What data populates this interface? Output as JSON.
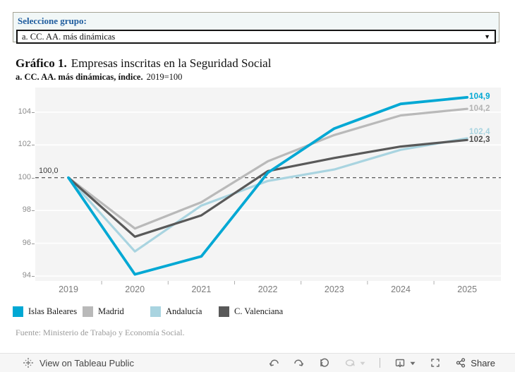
{
  "filter": {
    "label": "Seleccione grupo:",
    "selected_option": "a. CC. AA. más dinámicas"
  },
  "title": {
    "prefix": "Gráfico 1.",
    "text": "Empresas inscritas en la Seguridad Social"
  },
  "subtitle": {
    "bold": "a. CC. AA. más dinámicas, índice.",
    "normal": "2019=100"
  },
  "chart_data": {
    "type": "line",
    "x": [
      2019,
      2020,
      2021,
      2022,
      2023,
      2024,
      2025
    ],
    "series": [
      {
        "name": "Islas Baleares",
        "color": "#00a8d4",
        "line_width": 3.8,
        "values": [
          100.0,
          94.1,
          95.2,
          100.3,
          103.0,
          104.5,
          104.9
        ],
        "end_label": "104,9",
        "end_label_color": "#00a8d4"
      },
      {
        "name": "Madrid",
        "color": "#b9b9b9",
        "line_width": 3.2,
        "values": [
          100.0,
          96.9,
          98.5,
          101.0,
          102.6,
          103.8,
          104.2
        ],
        "end_label": "104,2",
        "end_label_color": "#b3b3b3"
      },
      {
        "name": "Andalucía",
        "color": "#a9d4e0",
        "line_width": 3.2,
        "values": [
          100.0,
          95.5,
          98.3,
          99.8,
          100.5,
          101.7,
          102.4
        ],
        "end_label": "102,4",
        "end_label_color": "#a9d4e0"
      },
      {
        "name": "C. Valenciana",
        "color": "#595959",
        "line_width": 3.2,
        "values": [
          100.0,
          96.4,
          97.7,
          100.4,
          101.2,
          101.9,
          102.3
        ],
        "end_label": "102,3",
        "end_label_color": "#4d4d4d"
      }
    ],
    "draw_order": [
      1,
      2,
      3,
      0
    ],
    "yticks": [
      94,
      96,
      98,
      100,
      102,
      104
    ],
    "ylim": [
      93.7,
      105.5
    ],
    "reference_line": {
      "value": 100,
      "label": "100,0",
      "style": "dashed"
    },
    "grid": "white-on-gray",
    "legend_position": "bottom",
    "xlabel": "",
    "ylabel": ""
  },
  "footer": {
    "source": "Fuente: Ministerio de Trabajo y Economía Social."
  },
  "toolbar": {
    "view_label": "View on Tableau Public",
    "share_label": "Share",
    "icons": [
      "tableau-logo",
      "undo",
      "redo",
      "reset",
      "refresh",
      "download",
      "fullscreen",
      "share"
    ]
  },
  "colors": {
    "plot_background": "#f4f4f4",
    "gridline": "#ffffff",
    "filter_label": "#1e5c9e",
    "axis_text": "#8c8c8c",
    "filter_panel_background": "#f1f7f7"
  }
}
